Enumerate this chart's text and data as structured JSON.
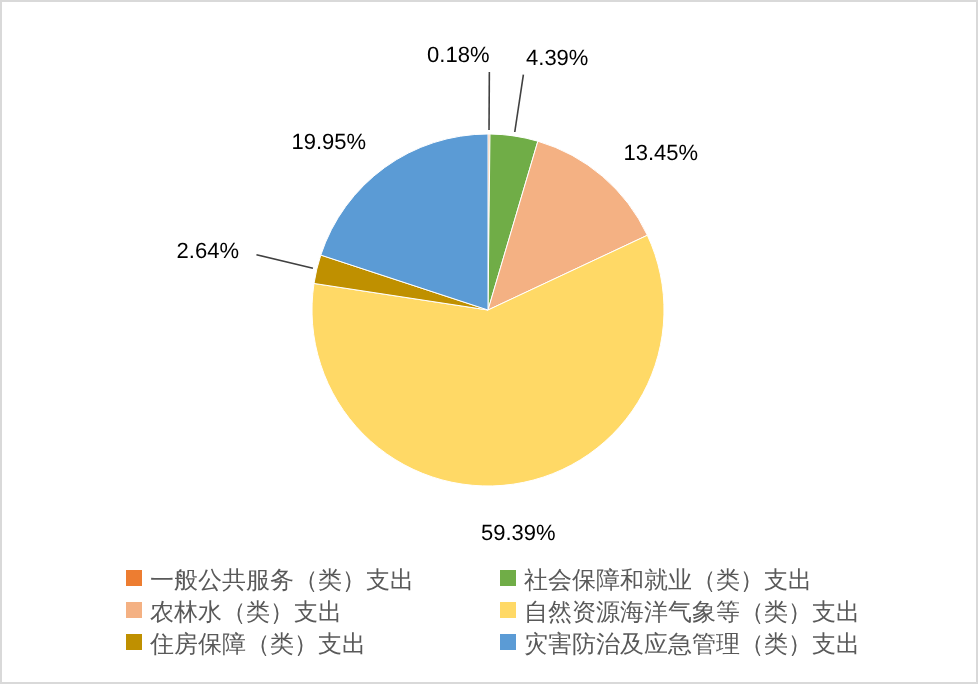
{
  "chart_data": {
    "type": "pie",
    "categories": [
      "一般公共服务（类）支出",
      "社会保障和就业（类）支出",
      "农林水（类）支出",
      "自然资源海洋气象等（类）支出",
      "住房保障（类）支出",
      "灾害防治及应急管理（类）支出"
    ],
    "values": [
      0.18,
      4.39,
      13.45,
      59.39,
      2.64,
      19.95
    ],
    "colors": [
      "#ed7d31",
      "#70ad47",
      "#f4b183",
      "#ffd966",
      "#bf9000",
      "#5b9bd5"
    ],
    "value_labels": [
      "0.18%",
      "4.39%",
      "13.45%",
      "59.39%",
      "2.64%",
      "19.95%"
    ],
    "legend": "bottom"
  }
}
